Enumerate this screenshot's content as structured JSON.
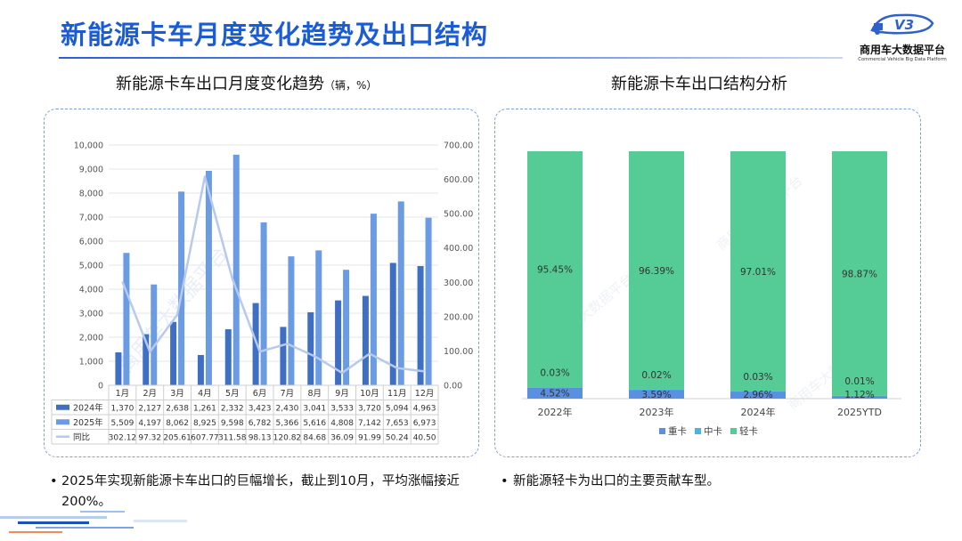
{
  "header": {
    "title": "新能源卡车月度变化趋势及出口结构",
    "brand": "商用车大数据平台",
    "brand_en": "Commercial Vehicle Big Data Platform",
    "logo_text": "V3"
  },
  "left": {
    "subtitle": "新能源卡车出口月度变化趋势",
    "unit": "（辆，%）",
    "bullet": "2025年实现新能源卡车出口的巨幅增长，截止到10月，平均涨幅接近200%。"
  },
  "right": {
    "subtitle": "新能源卡车出口结构分析",
    "bullet": "新能源轻卡为出口的主要贡献车型。"
  },
  "watermark": "商用车大数据平台",
  "chart_data": [
    {
      "type": "bar",
      "title": "新能源卡车出口月度变化趋势",
      "categories": [
        "1月",
        "2月",
        "3月",
        "4月",
        "5月",
        "6月",
        "7月",
        "8月",
        "9月",
        "10月",
        "11月",
        "12月"
      ],
      "series": [
        {
          "name": "2024年",
          "type": "bar",
          "axis": "left",
          "color": "#3f6fc3",
          "values": [
            1370,
            2127,
            2638,
            1261,
            2332,
            3423,
            2430,
            3041,
            3533,
            3720,
            5094,
            4963
          ],
          "labels": [
            "1,370",
            "2,127",
            "2,638",
            "1,261",
            "2,332",
            "3,423",
            "2,430",
            "3,041",
            "3,533",
            "3,720",
            "5,094",
            "4,963"
          ]
        },
        {
          "name": "2025年",
          "type": "bar",
          "axis": "left",
          "color": "#6a9be3",
          "values": [
            5509,
            4197,
            8062,
            8925,
            9598,
            6782,
            5366,
            5616,
            4808,
            7142,
            7653,
            6973
          ],
          "labels": [
            "5,509",
            "4,197",
            "8,062",
            "8,925",
            "9,598",
            "6,782",
            "5,366",
            "5,616",
            "4,808",
            "7,142",
            "7,653",
            "6,973"
          ]
        },
        {
          "name": "同比",
          "type": "line",
          "axis": "right",
          "color": "#b7c9ee",
          "values": [
            302.12,
            97.32,
            205.61,
            607.77,
            311.58,
            98.13,
            120.82,
            84.68,
            36.09,
            91.99,
            50.24,
            40.5
          ],
          "labels": [
            "302.12",
            "97.32",
            "205.61",
            "607.77",
            "311.58",
            "98.13",
            "120.82",
            "84.68",
            "36.09",
            "91.99",
            "50.24",
            "40.50"
          ]
        }
      ],
      "y_left": {
        "min": 0,
        "max": 10000,
        "ticks": [
          "0",
          "1,000",
          "2,000",
          "3,000",
          "4,000",
          "5,000",
          "6,000",
          "7,000",
          "8,000",
          "9,000",
          "10,000"
        ]
      },
      "y_right": {
        "min": 0,
        "max": 700,
        "ticks": [
          "0.00",
          "100.00",
          "200.00",
          "300.00",
          "400.00",
          "500.00",
          "600.00",
          "700.00"
        ]
      },
      "grid": true,
      "legend": "data-table"
    },
    {
      "type": "bar",
      "stacked": true,
      "normalized": true,
      "title": "新能源卡车出口结构分析",
      "categories": [
        "2022年",
        "2023年",
        "2024年",
        "2025YTD"
      ],
      "series": [
        {
          "name": "重卡",
          "color": "#5b8fe0",
          "values": [
            4.52,
            3.59,
            2.96,
            1.12
          ],
          "labels": [
            "4.52%",
            "3.59%",
            "2.96%",
            "1.12%"
          ]
        },
        {
          "name": "中卡",
          "color": "#46b4e6",
          "values": [
            0.03,
            0.02,
            0.03,
            0.01
          ],
          "labels": [
            "0.03%",
            "0.02%",
            "0.03%",
            "0.01%"
          ]
        },
        {
          "name": "轻卡",
          "color": "#55cc96",
          "values": [
            95.45,
            96.39,
            97.01,
            98.87
          ],
          "labels": [
            "95.45%",
            "96.39%",
            "97.01%",
            "98.87%"
          ]
        }
      ],
      "ylim": [
        0,
        100
      ],
      "legend": "bottom"
    }
  ]
}
